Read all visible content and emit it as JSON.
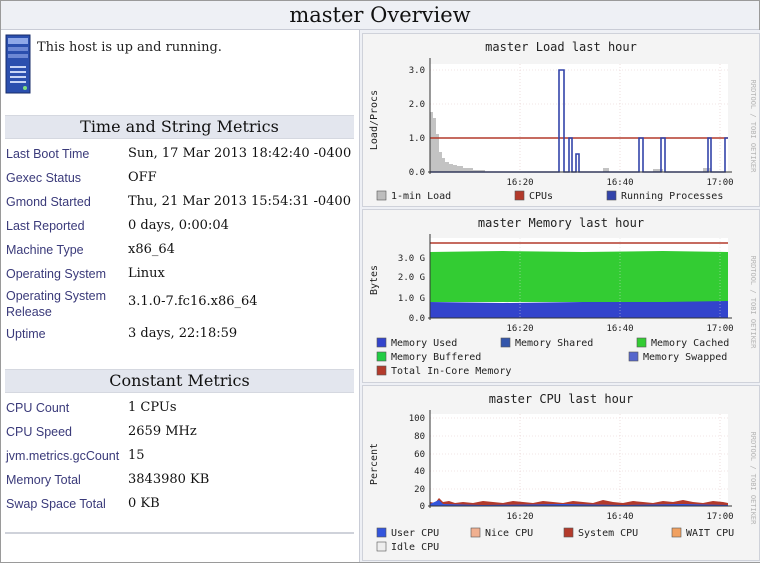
{
  "page": {
    "title": "master Overview"
  },
  "host": {
    "status_text": "This host is up and running.",
    "icon": "server-icon"
  },
  "time_string": {
    "title": "Time and String Metrics",
    "rows": [
      {
        "label": "Last Boot Time",
        "value": "Sun, 17 Mar 2013 18:42:40 -0400"
      },
      {
        "label": "Gexec Status",
        "value": "OFF"
      },
      {
        "label": "Gmond Started",
        "value": "Thu, 21 Mar 2013 15:54:31 -0400"
      },
      {
        "label": "Last Reported",
        "value": "0 days, 0:00:04"
      },
      {
        "label": "Machine Type",
        "value": "x86_64"
      },
      {
        "label": "Operating System",
        "value": "Linux"
      },
      {
        "label": "Operating System Release",
        "value": "3.1.0-7.fc16.x86_64"
      },
      {
        "label": "Uptime",
        "value": "3 days, 22:18:59"
      }
    ]
  },
  "constant": {
    "title": "Constant Metrics",
    "rows": [
      {
        "label": "CPU Count",
        "value": "1 CPUs"
      },
      {
        "label": "CPU Speed",
        "value": "2659 MHz"
      },
      {
        "label": "jvm.metrics.gcCount",
        "value": "15"
      },
      {
        "label": "Memory Total",
        "value": "3843980 KB"
      },
      {
        "label": "Swap Space Total",
        "value": "0 KB"
      }
    ]
  },
  "watermark": "RRDTOOL / TOBI OETIKER",
  "graphs": {
    "load": {
      "title": "master Load last hour",
      "ylabel": "Load/Procs",
      "yticks": [
        "3.0",
        "2.0",
        "1.0",
        "0.0"
      ],
      "xticks": [
        "16:20",
        "16:40",
        "17:00"
      ],
      "legend": [
        {
          "label": "1-min Load",
          "color": "#bdbdbd"
        },
        {
          "label": "CPUs",
          "color": "#b33a2b"
        },
        {
          "label": "Running Processes",
          "color": "#3344aa"
        }
      ]
    },
    "memory": {
      "title": "master Memory last hour",
      "ylabel": "Bytes",
      "yticks": [
        "3.0 G",
        "2.0 G",
        "1.0 G",
        "0.0"
      ],
      "xticks": [
        "16:20",
        "16:40",
        "17:00"
      ],
      "legend": [
        {
          "label": "Memory Used",
          "color": "#3344cc"
        },
        {
          "label": "Memory Shared",
          "color": "#3355aa"
        },
        {
          "label": "Memory Cached",
          "color": "#33cc33"
        },
        {
          "label": "Memory Buffered",
          "color": "#22cc44"
        },
        {
          "label": "Memory Swapped",
          "color": "#5566cc"
        },
        {
          "label": "Total In-Core Memory",
          "color": "#b33a2b"
        }
      ]
    },
    "cpu": {
      "title": "master CPU last hour",
      "ylabel": "Percent",
      "yticks": [
        "100",
        "80",
        "60",
        "40",
        "20",
        "0"
      ],
      "xticks": [
        "16:20",
        "16:40",
        "17:00"
      ],
      "legend": [
        {
          "label": "User CPU",
          "color": "#3355dd"
        },
        {
          "label": "Nice CPU",
          "color": "#f0b090"
        },
        {
          "label": "System CPU",
          "color": "#b33a2b"
        },
        {
          "label": "WAIT CPU",
          "color": "#f0a060"
        },
        {
          "label": "Idle CPU",
          "color": "#eeeeee"
        }
      ]
    }
  }
}
